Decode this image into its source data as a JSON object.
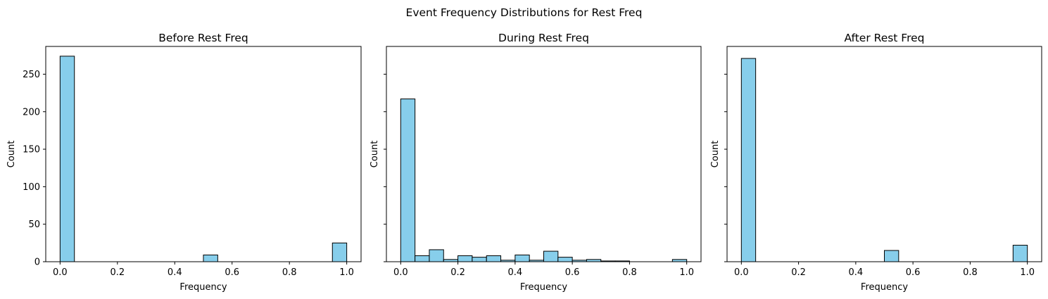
{
  "figure": {
    "title": "Event Frequency Distributions for Rest Freq"
  },
  "chart_data": [
    {
      "type": "bar",
      "title": "Before Rest Freq",
      "xlabel": "Frequency",
      "ylabel": "Count",
      "xlim": [
        -0.05,
        1.05
      ],
      "ylim": [
        0,
        287
      ],
      "xticks": [
        0.0,
        0.2,
        0.4,
        0.6,
        0.8,
        1.0
      ],
      "xtick_labels": [
        "0.0",
        "0.2",
        "0.4",
        "0.6",
        "0.8",
        "1.0"
      ],
      "yticks": [
        0,
        50,
        100,
        150,
        200,
        250
      ],
      "ytick_labels": [
        "0",
        "50",
        "100",
        "150",
        "200",
        "250"
      ],
      "show_ytick_labels": true,
      "bin_width": 0.05,
      "bin_starts": [
        0.0,
        0.5,
        0.95
      ],
      "values": [
        274,
        9,
        25
      ],
      "color": "#87ceeb",
      "edgecolor": "#000000",
      "grid": false
    },
    {
      "type": "bar",
      "title": "During Rest Freq",
      "xlabel": "Frequency",
      "ylabel": "Count",
      "xlim": [
        -0.05,
        1.05
      ],
      "ylim": [
        0,
        287
      ],
      "xticks": [
        0.0,
        0.2,
        0.4,
        0.6,
        0.8,
        1.0
      ],
      "xtick_labels": [
        "0.0",
        "0.2",
        "0.4",
        "0.6",
        "0.8",
        "1.0"
      ],
      "yticks": [
        0,
        50,
        100,
        150,
        200,
        250
      ],
      "ytick_labels": [
        "0",
        "50",
        "100",
        "150",
        "200",
        "250"
      ],
      "show_ytick_labels": false,
      "bin_width": 0.05,
      "bin_starts": [
        0.0,
        0.05,
        0.1,
        0.15,
        0.2,
        0.25,
        0.3,
        0.35,
        0.4,
        0.45,
        0.5,
        0.55,
        0.6,
        0.65,
        0.7,
        0.75,
        0.8,
        0.85,
        0.9,
        0.95
      ],
      "values": [
        217,
        8,
        16,
        3,
        8,
        6,
        8,
        2,
        9,
        2,
        14,
        6,
        2,
        3,
        1,
        1,
        0,
        0,
        0,
        3
      ],
      "color": "#87ceeb",
      "edgecolor": "#000000",
      "grid": false
    },
    {
      "type": "bar",
      "title": "After Rest Freq",
      "xlabel": "Frequency",
      "ylabel": "Count",
      "xlim": [
        -0.05,
        1.05
      ],
      "ylim": [
        0,
        287
      ],
      "xticks": [
        0.0,
        0.2,
        0.4,
        0.6,
        0.8,
        1.0
      ],
      "xtick_labels": [
        "0.0",
        "0.2",
        "0.4",
        "0.6",
        "0.8",
        "1.0"
      ],
      "yticks": [
        0,
        50,
        100,
        150,
        200,
        250
      ],
      "ytick_labels": [
        "0",
        "50",
        "100",
        "150",
        "200",
        "250"
      ],
      "show_ytick_labels": false,
      "bin_width": 0.05,
      "bin_starts": [
        0.0,
        0.5,
        0.95
      ],
      "values": [
        271,
        15,
        22
      ],
      "color": "#87ceeb",
      "edgecolor": "#000000",
      "grid": false
    }
  ]
}
